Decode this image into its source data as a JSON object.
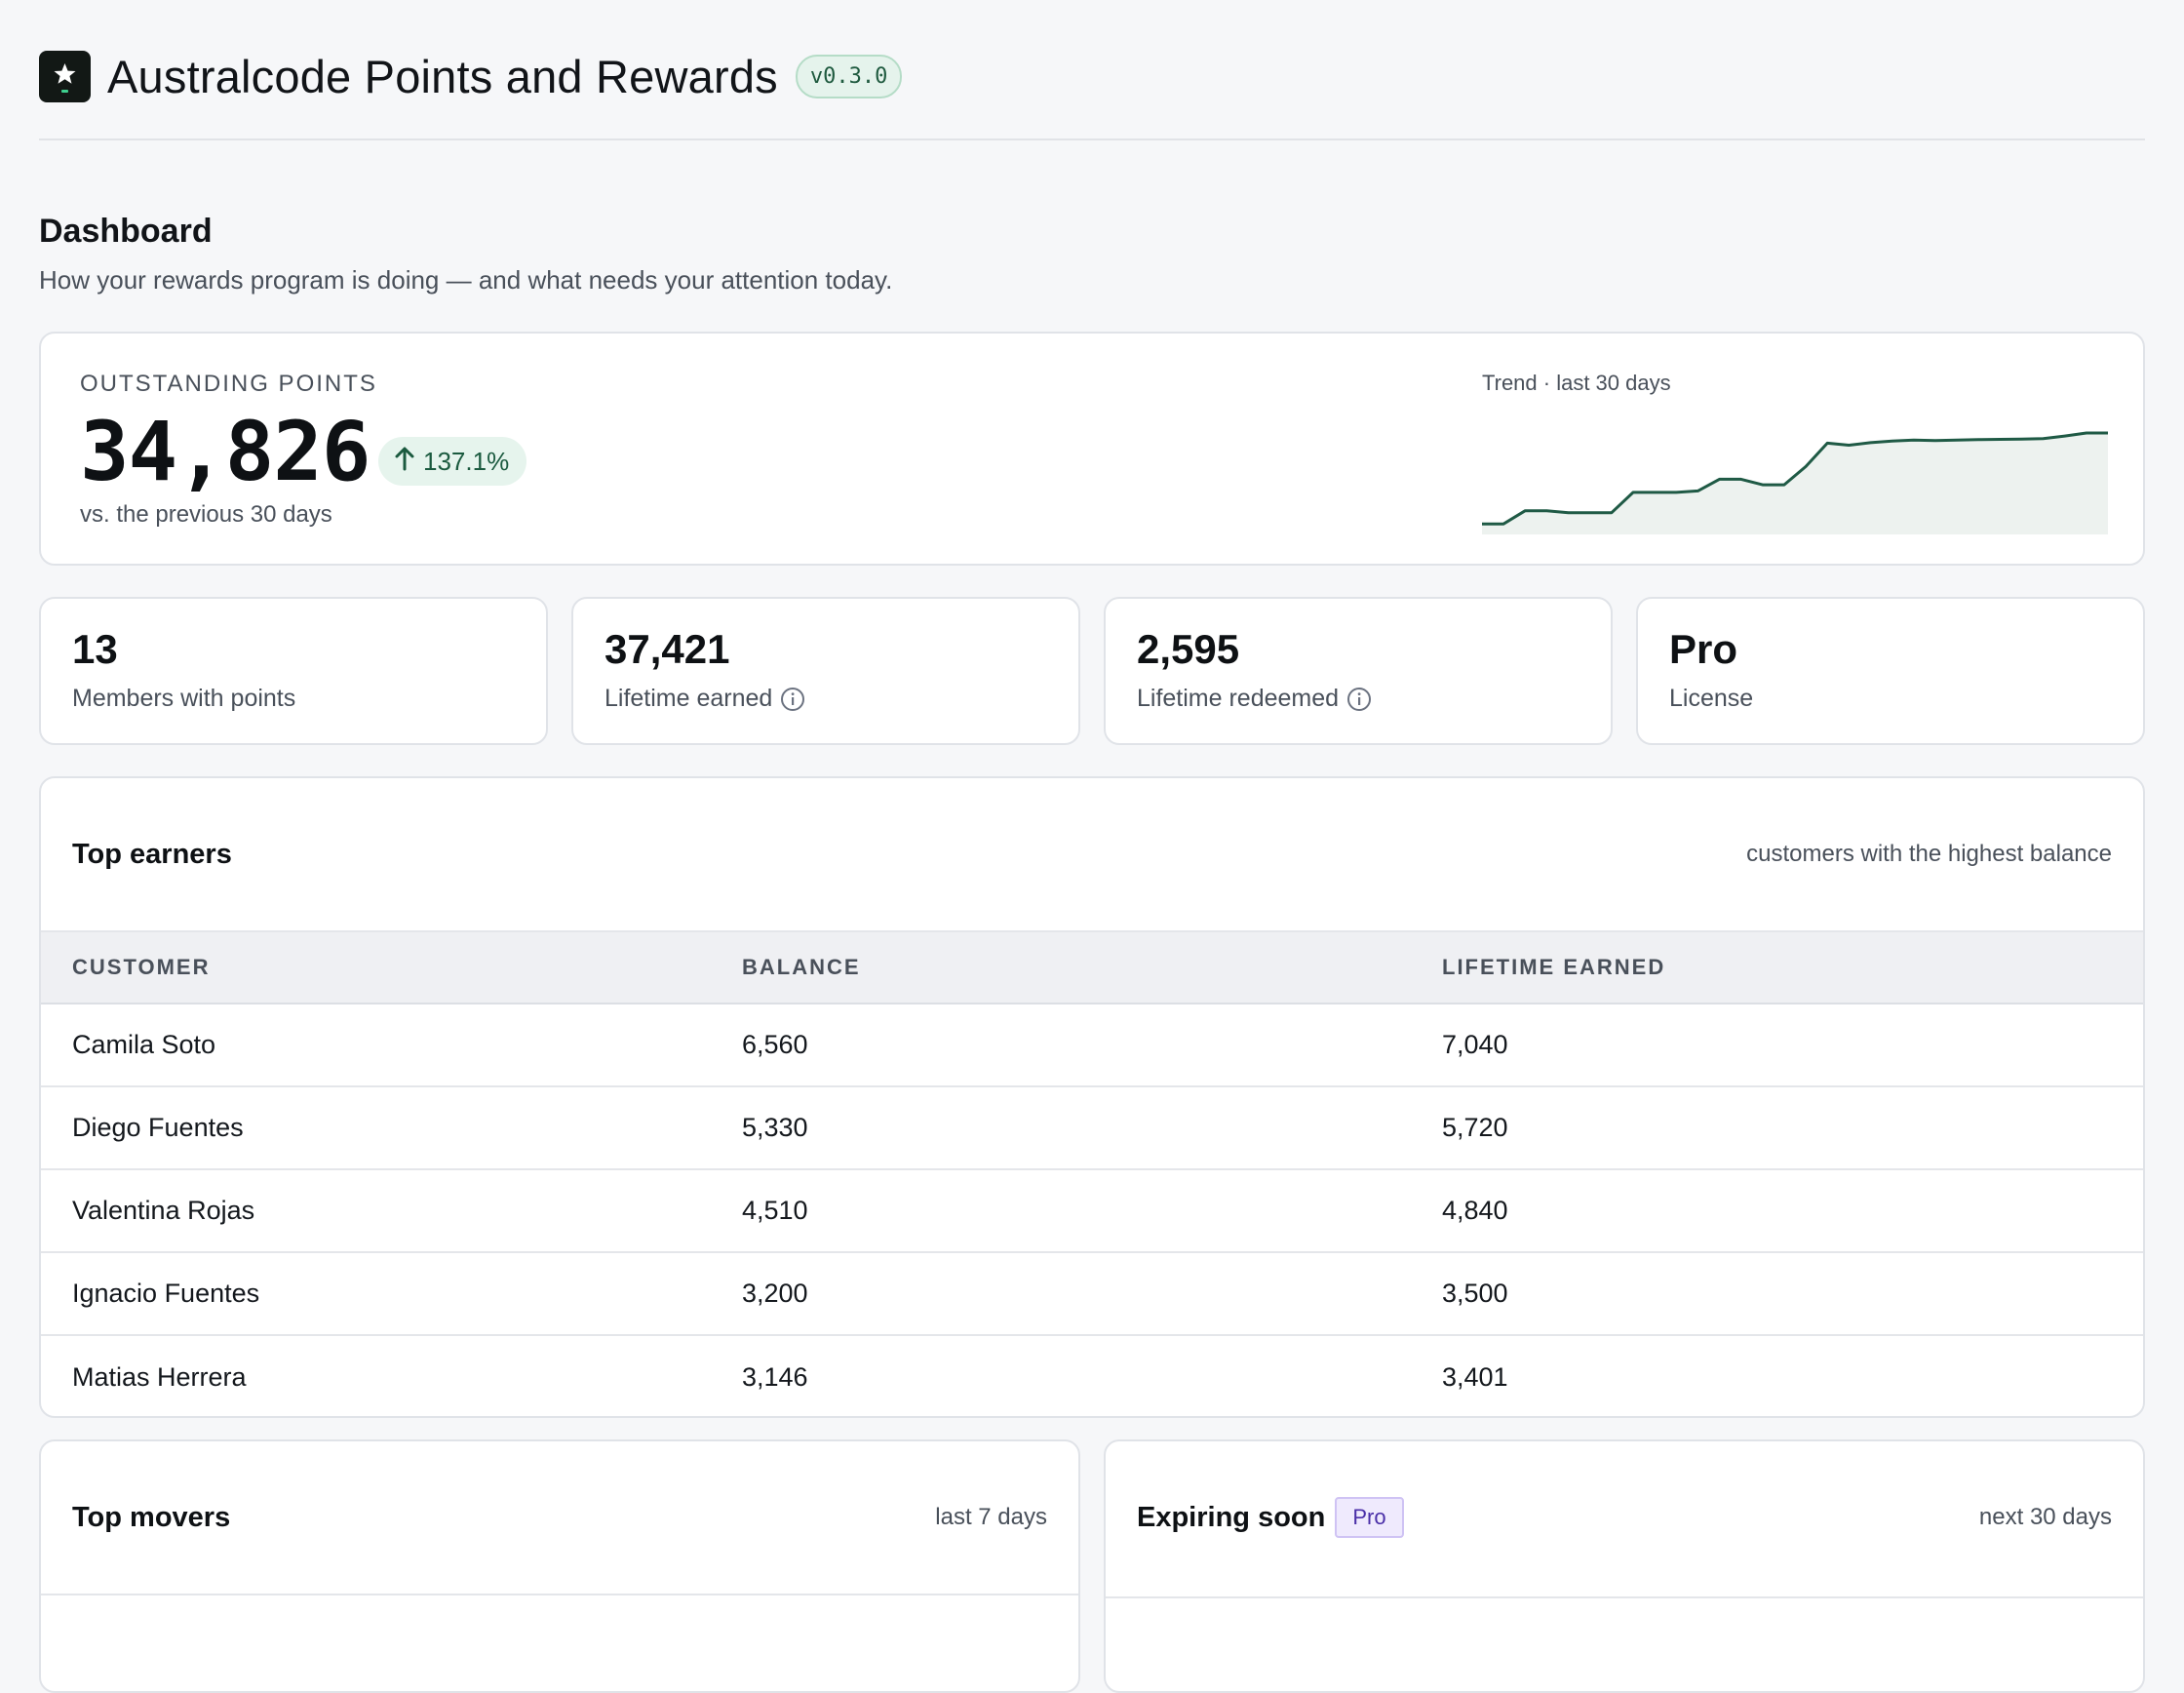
{
  "app": {
    "title": "Australcode Points and Rewards",
    "version": "v0.3.0"
  },
  "page": {
    "title": "Dashboard",
    "subtitle": "How your rewards program is doing — and what needs your attention today."
  },
  "hero": {
    "label": "OUTSTANDING POINTS",
    "value": "34,826",
    "delta": "137.1%",
    "note": "vs. the previous 30 days",
    "trend_label": "Trend · last 30 days"
  },
  "chart_data": {
    "type": "area",
    "xlabel": "",
    "ylabel": "",
    "x": [
      1,
      2,
      3,
      4,
      5,
      6,
      7,
      8,
      9,
      10,
      11,
      12,
      13,
      14,
      15,
      16,
      17,
      18,
      19,
      20,
      21,
      22,
      23,
      24,
      25,
      26,
      27,
      28,
      29,
      30
    ],
    "values": [
      1300,
      1300,
      3900,
      3900,
      3500,
      3500,
      3500,
      7500,
      7500,
      7500,
      7800,
      10100,
      10100,
      9000,
      9000,
      12600,
      17200,
      16800,
      17300,
      17600,
      17800,
      17700,
      17800,
      17900,
      17950,
      18000,
      18100,
      18600,
      19200,
      19200
    ],
    "color": "#1f5a45",
    "fill": "#edf2ef"
  },
  "stats": [
    {
      "value": "13",
      "label": "Members with points",
      "info": false
    },
    {
      "value": "37,421",
      "label": "Lifetime earned",
      "info": true
    },
    {
      "value": "2,595",
      "label": "Lifetime redeemed",
      "info": true
    },
    {
      "value": "Pro",
      "label": "License",
      "info": false
    }
  ],
  "top_earners": {
    "title": "Top earners",
    "aside": "customers with the highest balance",
    "columns": [
      "CUSTOMER",
      "BALANCE",
      "LIFETIME EARNED"
    ],
    "rows": [
      [
        "Camila Soto",
        "6,560",
        "7,040"
      ],
      [
        "Diego Fuentes",
        "5,330",
        "5,720"
      ],
      [
        "Valentina Rojas",
        "4,510",
        "4,840"
      ],
      [
        "Ignacio Fuentes",
        "3,200",
        "3,500"
      ],
      [
        "Matias Herrera",
        "3,146",
        "3,401"
      ]
    ]
  },
  "top_movers": {
    "title": "Top movers",
    "aside": "last 7 days"
  },
  "expiring": {
    "title": "Expiring soon",
    "badge": "Pro",
    "aside": "next 30 days"
  },
  "icons": {
    "logo": "star-logo-icon",
    "delta": "arrow-up-icon",
    "info": "info-icon"
  }
}
